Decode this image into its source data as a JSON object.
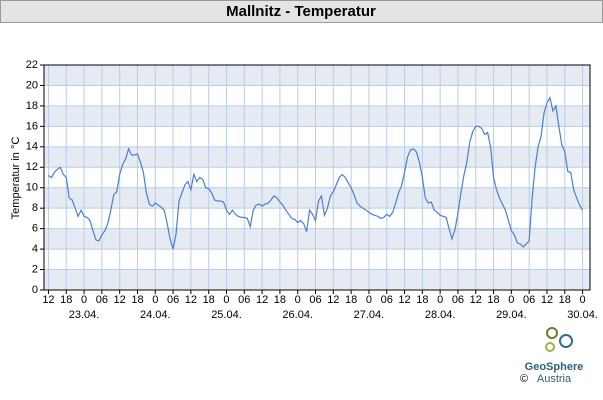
{
  "chart_data": {
    "type": "line",
    "title": "Mallnitz - Temperatur",
    "ylabel": "Temperatur in °C",
    "x": [
      0,
      1,
      2,
      3,
      4,
      5,
      6,
      7,
      8,
      9,
      10,
      11,
      12,
      13,
      14,
      15,
      16,
      17,
      18,
      19,
      20,
      21,
      22,
      23,
      24,
      25,
      26,
      27,
      28,
      29,
      30,
      31,
      32,
      33,
      34,
      35,
      36,
      37,
      38,
      39,
      40,
      41,
      42,
      43,
      44,
      45,
      46,
      47,
      48,
      49,
      50,
      51,
      52,
      53,
      54,
      55,
      56,
      57,
      58,
      59,
      60,
      61,
      62,
      63,
      64,
      65,
      66,
      67,
      68,
      69,
      70,
      71,
      72,
      73,
      74,
      75,
      76,
      77,
      78,
      79,
      80,
      81,
      82,
      83,
      84,
      85,
      86,
      87,
      88,
      89,
      90,
      91,
      92,
      93,
      94,
      95,
      96,
      97,
      98,
      99,
      100,
      101,
      102,
      103,
      104,
      105,
      106,
      107,
      108,
      109,
      110,
      111,
      112,
      113,
      114,
      115,
      116,
      117,
      118,
      119,
      120,
      121,
      122,
      123,
      124,
      125,
      126,
      127,
      128,
      129,
      130,
      131,
      132,
      133,
      134,
      135,
      136,
      137,
      138,
      139,
      140,
      141,
      142,
      143,
      144,
      145,
      146,
      147,
      148,
      149,
      150,
      151,
      152,
      153,
      154,
      155,
      156,
      157,
      158,
      159,
      160,
      161,
      162,
      163,
      164,
      165,
      166,
      167,
      168,
      169,
      170,
      171,
      172,
      173,
      174,
      175,
      176,
      177,
      178,
      179,
      180
    ],
    "series": [
      {
        "name": "Temperatur",
        "color": "#4a7fd4",
        "values": [
          11.2,
          11.0,
          11.5,
          11.8,
          12.0,
          11.3,
          11.0,
          9.0,
          8.8,
          8.0,
          7.2,
          7.8,
          7.2,
          7.1,
          6.8,
          5.8,
          4.9,
          4.8,
          5.4,
          5.8,
          6.5,
          7.8,
          9.3,
          9.6,
          11.3,
          12.3,
          12.8,
          13.8,
          13.2,
          13.2,
          13.3,
          12.5,
          11.5,
          9.5,
          8.4,
          8.2,
          8.5,
          8.3,
          8.1,
          7.8,
          6.5,
          5.0,
          4.0,
          5.5,
          8.7,
          9.5,
          10.3,
          10.6,
          9.8,
          11.3,
          10.6,
          11.0,
          10.8,
          10.0,
          9.9,
          9.5,
          8.8,
          8.7,
          8.7,
          8.6,
          7.8,
          7.4,
          7.8,
          7.4,
          7.2,
          7.1,
          7.1,
          7.0,
          6.2,
          7.8,
          8.3,
          8.4,
          8.2,
          8.4,
          8.5,
          8.8,
          9.2,
          9.0,
          8.6,
          8.3,
          7.8,
          7.4,
          7.0,
          6.9,
          6.6,
          6.8,
          6.5,
          5.7,
          7.8,
          7.4,
          6.8,
          8.7,
          9.2,
          7.3,
          8.0,
          9.2,
          9.6,
          10.3,
          11.0,
          11.3,
          11.0,
          10.5,
          10.0,
          9.3,
          8.5,
          8.2,
          8.0,
          7.8,
          7.6,
          7.4,
          7.3,
          7.2,
          7.0,
          7.1,
          7.4,
          7.2,
          7.6,
          8.5,
          9.5,
          10.2,
          11.5,
          13.0,
          13.7,
          13.8,
          13.5,
          12.5,
          11.0,
          9.0,
          8.5,
          8.6,
          7.8,
          7.6,
          7.3,
          7.2,
          7.1,
          6.0,
          5.0,
          5.9,
          7.5,
          9.5,
          11.2,
          12.5,
          14.5,
          15.5,
          16.0,
          16.0,
          15.8,
          15.2,
          15.4,
          14.0,
          11.0,
          9.8,
          9.0,
          8.4,
          7.8,
          6.8,
          5.8,
          5.4,
          4.6,
          4.5,
          4.2,
          4.5,
          4.8,
          9.0,
          12.0,
          14.0,
          15.0,
          17.3,
          18.3,
          18.8,
          17.5,
          18.0,
          16.0,
          14.2,
          13.5,
          11.6,
          11.5,
          9.8,
          9.0,
          8.3,
          7.8
        ]
      }
    ],
    "xlim": [
      -1.5,
      182.5
    ],
    "ylim": [
      0,
      22
    ],
    "yticks": [
      0,
      2,
      4,
      6,
      8,
      10,
      12,
      14,
      16,
      18,
      20,
      22
    ],
    "xticks": [
      {
        "value": 0,
        "label": "12"
      },
      {
        "value": 6,
        "label": "18"
      },
      {
        "value": 12,
        "label": "0"
      },
      {
        "value": 18,
        "label": "06"
      },
      {
        "value": 24,
        "label": "12"
      },
      {
        "value": 30,
        "label": "18"
      },
      {
        "value": 36,
        "label": "0"
      },
      {
        "value": 42,
        "label": "06"
      },
      {
        "value": 48,
        "label": "12"
      },
      {
        "value": 54,
        "label": "18"
      },
      {
        "value": 60,
        "label": "0"
      },
      {
        "value": 66,
        "label": "06"
      },
      {
        "value": 72,
        "label": "12"
      },
      {
        "value": 78,
        "label": "18"
      },
      {
        "value": 84,
        "label": "0"
      },
      {
        "value": 90,
        "label": "06"
      },
      {
        "value": 96,
        "label": "12"
      },
      {
        "value": 102,
        "label": "18"
      },
      {
        "value": 108,
        "label": "0"
      },
      {
        "value": 114,
        "label": "06"
      },
      {
        "value": 120,
        "label": "12"
      },
      {
        "value": 126,
        "label": "18"
      },
      {
        "value": 132,
        "label": "0"
      },
      {
        "value": 138,
        "label": "06"
      },
      {
        "value": 144,
        "label": "12"
      },
      {
        "value": 150,
        "label": "18"
      },
      {
        "value": 156,
        "label": "0"
      },
      {
        "value": 162,
        "label": "06"
      },
      {
        "value": 168,
        "label": "12"
      },
      {
        "value": 174,
        "label": "18"
      },
      {
        "value": 180,
        "label": "0"
      }
    ],
    "dates": [
      {
        "value": 12,
        "label": "23.04."
      },
      {
        "value": 36,
        "label": "24.04."
      },
      {
        "value": 60,
        "label": "25.04."
      },
      {
        "value": 84,
        "label": "26.04."
      },
      {
        "value": 108,
        "label": "27.04."
      },
      {
        "value": 132,
        "label": "28.04."
      },
      {
        "value": 156,
        "label": "29.04."
      },
      {
        "value": 180,
        "label": "30.04."
      }
    ],
    "grid": true
  },
  "logo": {
    "name": "GeoSphere",
    "sub": "Austria",
    "copyright": "©"
  }
}
